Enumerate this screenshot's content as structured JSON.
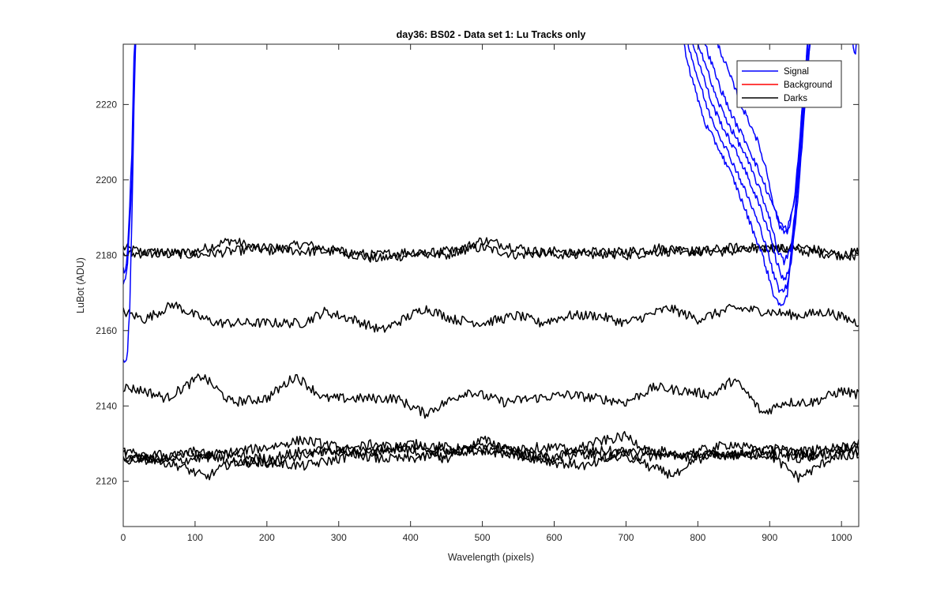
{
  "chart_data": {
    "type": "line",
    "title": "day36: BS02 - Data set 1: Lu Tracks only",
    "xlabel": "Wavelength (pixels)",
    "ylabel": "LuBot (ADU)",
    "xlim": [
      0,
      1024
    ],
    "ylim": [
      2108,
      2236
    ],
    "xticks": [
      0,
      100,
      200,
      300,
      400,
      500,
      600,
      700,
      800,
      900,
      1000
    ],
    "yticks": [
      2120,
      2140,
      2160,
      2180,
      2200,
      2220
    ],
    "grid": false,
    "legend": {
      "placement": "top-right",
      "entries": [
        {
          "label": "Signal",
          "color": "#0000ff"
        },
        {
          "label": "Background",
          "color": "#ff0000"
        },
        {
          "label": "Darks",
          "color": "#000000"
        }
      ]
    },
    "series": [
      {
        "group": "Darks",
        "color": "#000000",
        "points": [
          [
            0,
            2182
          ],
          [
            50,
            2180
          ],
          [
            100,
            2181
          ],
          [
            150,
            2184
          ],
          [
            200,
            2181
          ],
          [
            250,
            2183
          ],
          [
            300,
            2181
          ],
          [
            350,
            2179
          ],
          [
            400,
            2180
          ],
          [
            450,
            2181
          ],
          [
            500,
            2182
          ],
          [
            550,
            2180
          ],
          [
            600,
            2181
          ],
          [
            650,
            2180
          ],
          [
            700,
            2181
          ],
          [
            750,
            2182
          ],
          [
            800,
            2181
          ],
          [
            850,
            2181
          ],
          [
            900,
            2182
          ],
          [
            950,
            2181
          ],
          [
            1000,
            2180
          ],
          [
            1024,
            2181
          ]
        ]
      },
      {
        "group": "Darks",
        "color": "#000000",
        "points": [
          [
            0,
            2180
          ],
          [
            50,
            2181
          ],
          [
            100,
            2180
          ],
          [
            150,
            2181
          ],
          [
            200,
            2182
          ],
          [
            250,
            2181
          ],
          [
            300,
            2181
          ],
          [
            350,
            2180
          ],
          [
            400,
            2181
          ],
          [
            450,
            2180
          ],
          [
            500,
            2184
          ],
          [
            550,
            2182
          ],
          [
            600,
            2180
          ],
          [
            650,
            2181
          ],
          [
            700,
            2180
          ],
          [
            750,
            2181
          ],
          [
            800,
            2181
          ],
          [
            850,
            2182
          ],
          [
            900,
            2182
          ],
          [
            950,
            2182
          ],
          [
            1000,
            2180
          ],
          [
            1024,
            2180
          ]
        ]
      },
      {
        "group": "Darks",
        "color": "#000000",
        "points": [
          [
            0,
            2165
          ],
          [
            30,
            2163
          ],
          [
            70,
            2167
          ],
          [
            100,
            2164
          ],
          [
            130,
            2162
          ],
          [
            200,
            2162
          ],
          [
            250,
            2162
          ],
          [
            280,
            2165
          ],
          [
            320,
            2163
          ],
          [
            360,
            2160
          ],
          [
            420,
            2166
          ],
          [
            460,
            2163
          ],
          [
            500,
            2162
          ],
          [
            550,
            2164
          ],
          [
            580,
            2162
          ],
          [
            620,
            2164
          ],
          [
            660,
            2164
          ],
          [
            700,
            2162
          ],
          [
            760,
            2166
          ],
          [
            800,
            2163
          ],
          [
            850,
            2166
          ],
          [
            900,
            2165
          ],
          [
            940,
            2164
          ],
          [
            980,
            2165
          ],
          [
            1024,
            2162
          ]
        ]
      },
      {
        "group": "Darks",
        "color": "#000000",
        "points": [
          [
            0,
            2145
          ],
          [
            30,
            2144
          ],
          [
            60,
            2142
          ],
          [
            110,
            2148
          ],
          [
            150,
            2141
          ],
          [
            200,
            2142
          ],
          [
            240,
            2148
          ],
          [
            280,
            2142
          ],
          [
            330,
            2142
          ],
          [
            380,
            2142
          ],
          [
            420,
            2138
          ],
          [
            450,
            2141
          ],
          [
            480,
            2144
          ],
          [
            530,
            2141
          ],
          [
            570,
            2142
          ],
          [
            620,
            2143
          ],
          [
            660,
            2142
          ],
          [
            700,
            2141
          ],
          [
            740,
            2145
          ],
          [
            780,
            2144
          ],
          [
            820,
            2143
          ],
          [
            850,
            2147
          ],
          [
            870,
            2143
          ],
          [
            890,
            2138
          ],
          [
            920,
            2141
          ],
          [
            960,
            2141
          ],
          [
            1000,
            2144
          ],
          [
            1024,
            2143
          ]
        ]
      },
      {
        "group": "Darks",
        "color": "#000000",
        "points": [
          [
            0,
            2128
          ],
          [
            40,
            2126
          ],
          [
            80,
            2124
          ],
          [
            115,
            2121
          ],
          [
            150,
            2125
          ],
          [
            200,
            2125
          ],
          [
            250,
            2124
          ],
          [
            300,
            2126
          ],
          [
            350,
            2128
          ],
          [
            400,
            2130
          ],
          [
            450,
            2129
          ],
          [
            500,
            2128
          ],
          [
            550,
            2127
          ],
          [
            600,
            2126
          ],
          [
            650,
            2128
          ],
          [
            700,
            2128
          ],
          [
            730,
            2124
          ],
          [
            760,
            2122
          ],
          [
            780,
            2122
          ],
          [
            800,
            2127
          ],
          [
            850,
            2127
          ],
          [
            900,
            2127
          ],
          [
            940,
            2121
          ],
          [
            960,
            2123
          ],
          [
            1000,
            2128
          ],
          [
            1024,
            2129
          ]
        ]
      },
      {
        "group": "Darks",
        "color": "#000000",
        "points": [
          [
            0,
            2125
          ],
          [
            40,
            2127
          ],
          [
            80,
            2127
          ],
          [
            120,
            2127
          ],
          [
            160,
            2128
          ],
          [
            200,
            2129
          ],
          [
            250,
            2131
          ],
          [
            300,
            2129
          ],
          [
            350,
            2126
          ],
          [
            400,
            2126
          ],
          [
            450,
            2127
          ],
          [
            500,
            2130
          ],
          [
            550,
            2127
          ],
          [
            600,
            2125
          ],
          [
            650,
            2124
          ],
          [
            700,
            2128
          ],
          [
            750,
            2128
          ],
          [
            800,
            2126
          ],
          [
            850,
            2127
          ],
          [
            900,
            2129
          ],
          [
            950,
            2127
          ],
          [
            1000,
            2127
          ],
          [
            1024,
            2127
          ]
        ]
      },
      {
        "group": "Darks",
        "color": "#000000",
        "points": [
          [
            0,
            2126
          ],
          [
            50,
            2126
          ],
          [
            100,
            2128
          ],
          [
            150,
            2125
          ],
          [
            200,
            2125
          ],
          [
            250,
            2127
          ],
          [
            300,
            2128
          ],
          [
            350,
            2130
          ],
          [
            400,
            2128
          ],
          [
            450,
            2126
          ],
          [
            500,
            2131
          ],
          [
            550,
            2128
          ],
          [
            600,
            2126
          ],
          [
            650,
            2130
          ],
          [
            700,
            2132
          ],
          [
            750,
            2126
          ],
          [
            800,
            2128
          ],
          [
            850,
            2130
          ],
          [
            900,
            2127
          ],
          [
            950,
            2126
          ],
          [
            1000,
            2129
          ],
          [
            1024,
            2130
          ]
        ]
      },
      {
        "group": "Darks",
        "color": "#000000",
        "points": [
          [
            0,
            2127
          ],
          [
            50,
            2125
          ],
          [
            100,
            2126
          ],
          [
            150,
            2127
          ],
          [
            200,
            2126
          ],
          [
            250,
            2128
          ],
          [
            300,
            2128
          ],
          [
            350,
            2128
          ],
          [
            400,
            2129
          ],
          [
            450,
            2128
          ],
          [
            500,
            2128
          ],
          [
            550,
            2129
          ],
          [
            600,
            2129
          ],
          [
            650,
            2127
          ],
          [
            700,
            2126
          ],
          [
            750,
            2127
          ],
          [
            800,
            2127
          ],
          [
            850,
            2127
          ],
          [
            900,
            2128
          ],
          [
            950,
            2128
          ],
          [
            1000,
            2129
          ],
          [
            1024,
            2128
          ]
        ]
      },
      {
        "group": "Signal",
        "color": "#0000ff",
        "points": [
          [
            0,
            2152
          ],
          [
            3,
            2151
          ],
          [
            6,
            2154
          ],
          [
            9,
            2166
          ],
          [
            12,
            2190
          ],
          [
            15,
            2220
          ],
          [
            18,
            2242
          ]
        ]
      },
      {
        "group": "Signal",
        "color": "#0000ff",
        "points": [
          [
            0,
            2172
          ],
          [
            3,
            2174
          ],
          [
            6,
            2178
          ],
          [
            9,
            2188
          ],
          [
            12,
            2200
          ],
          [
            15,
            2225
          ],
          [
            18,
            2242
          ]
        ]
      },
      {
        "group": "Signal",
        "color": "#0000ff",
        "points": [
          [
            0,
            2176
          ],
          [
            3,
            2176
          ],
          [
            6,
            2181
          ],
          [
            9,
            2193
          ],
          [
            12,
            2207
          ],
          [
            15,
            2232
          ],
          [
            18,
            2242
          ]
        ]
      },
      {
        "group": "Signal",
        "color": "#0000ff",
        "points": [
          [
            770,
            2245
          ],
          [
            790,
            2228
          ],
          [
            810,
            2215
          ],
          [
            830,
            2208
          ],
          [
            850,
            2200
          ],
          [
            870,
            2190
          ],
          [
            890,
            2180
          ],
          [
            905,
            2170
          ],
          [
            915,
            2166
          ],
          [
            925,
            2170
          ],
          [
            935,
            2188
          ],
          [
            945,
            2215
          ],
          [
            955,
            2242
          ]
        ]
      },
      {
        "group": "Signal",
        "color": "#0000ff",
        "points": [
          [
            775,
            2245
          ],
          [
            795,
            2230
          ],
          [
            815,
            2218
          ],
          [
            835,
            2210
          ],
          [
            855,
            2202
          ],
          [
            875,
            2193
          ],
          [
            895,
            2183
          ],
          [
            905,
            2175
          ],
          [
            915,
            2170
          ],
          [
            925,
            2172
          ],
          [
            935,
            2190
          ],
          [
            945,
            2218
          ],
          [
            955,
            2242
          ]
        ]
      },
      {
        "group": "Signal",
        "color": "#0000ff",
        "points": [
          [
            780,
            2245
          ],
          [
            800,
            2232
          ],
          [
            820,
            2220
          ],
          [
            840,
            2212
          ],
          [
            860,
            2205
          ],
          [
            880,
            2196
          ],
          [
            900,
            2186
          ],
          [
            910,
            2178
          ],
          [
            920,
            2173
          ],
          [
            930,
            2178
          ],
          [
            940,
            2196
          ],
          [
            950,
            2222
          ],
          [
            958,
            2242
          ]
        ]
      },
      {
        "group": "Signal",
        "color": "#0000ff",
        "points": [
          [
            785,
            2245
          ],
          [
            805,
            2234
          ],
          [
            825,
            2222
          ],
          [
            845,
            2214
          ],
          [
            865,
            2207
          ],
          [
            885,
            2198
          ],
          [
            900,
            2190
          ],
          [
            910,
            2182
          ],
          [
            920,
            2178
          ],
          [
            930,
            2182
          ],
          [
            940,
            2200
          ],
          [
            950,
            2225
          ],
          [
            960,
            2242
          ]
        ]
      },
      {
        "group": "Signal",
        "color": "#0000ff",
        "points": [
          [
            790,
            2245
          ],
          [
            810,
            2236
          ],
          [
            830,
            2225
          ],
          [
            850,
            2216
          ],
          [
            870,
            2209
          ],
          [
            890,
            2200
          ],
          [
            905,
            2193
          ],
          [
            915,
            2188
          ],
          [
            925,
            2187
          ],
          [
            935,
            2195
          ],
          [
            945,
            2215
          ],
          [
            955,
            2236
          ],
          [
            962,
            2242
          ]
        ]
      },
      {
        "group": "Signal",
        "color": "#0000ff",
        "points": [
          [
            800,
            2245
          ],
          [
            820,
            2240
          ],
          [
            840,
            2230
          ],
          [
            860,
            2220
          ],
          [
            880,
            2212
          ],
          [
            895,
            2203
          ],
          [
            905,
            2194
          ],
          [
            915,
            2187
          ],
          [
            925,
            2186
          ],
          [
            935,
            2195
          ],
          [
            945,
            2218
          ],
          [
            955,
            2240
          ],
          [
            962,
            2245
          ]
        ]
      },
      {
        "group": "Signal",
        "color": "#0000ff",
        "points": [
          [
            1012,
            2242
          ],
          [
            1016,
            2236
          ],
          [
            1019,
            2232
          ],
          [
            1022,
            2240
          ]
        ]
      }
    ]
  }
}
